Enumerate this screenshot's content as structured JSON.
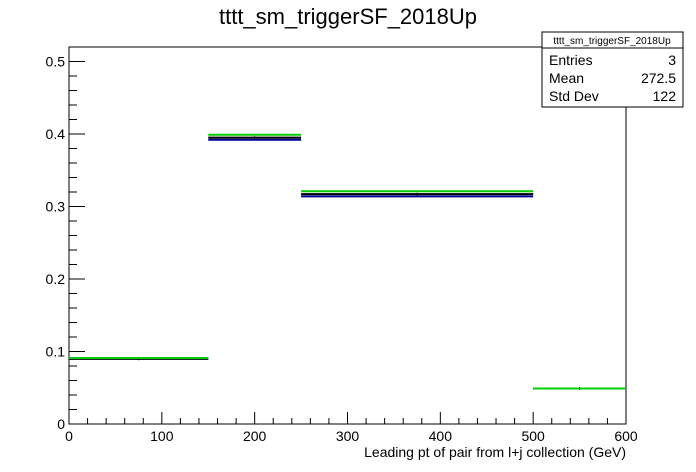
{
  "chart_data": {
    "type": "bar",
    "title": "tttt_sm_triggerSF_2018Up",
    "xlabel": "Leading pt of pair from l+j collection (GeV)",
    "ylabel": "",
    "xlim": [
      0,
      600
    ],
    "ylim": [
      0,
      0.52
    ],
    "x_ticks": [
      0,
      100,
      200,
      300,
      400,
      500,
      600
    ],
    "y_ticks": [
      0,
      0.1,
      0.2,
      0.3,
      0.4,
      0.5
    ],
    "x_tick_labels": [
      "0",
      "100",
      "200",
      "300",
      "400",
      "500",
      "600"
    ],
    "y_tick_labels": [
      "0",
      "0.1",
      "0.2",
      "0.3",
      "0.4",
      "0.5"
    ],
    "bin_edges": [
      0,
      150,
      250,
      500,
      600
    ],
    "series": [
      {
        "values": [
          0.09,
          0.392,
          0.314,
          0.049
        ],
        "color": "#000099"
      },
      {
        "values": [
          0.09,
          0.395,
          0.317,
          0.049
        ],
        "color": "#000000"
      },
      {
        "values": [
          0.091,
          0.399,
          0.321,
          0.049
        ],
        "color": "#00cc00"
      }
    ],
    "stats_box": {
      "title": "tttt_sm_triggerSF_2018Up",
      "rows": [
        {
          "label": "Entries",
          "value": "3"
        },
        {
          "label": "Mean",
          "value": "272.5"
        },
        {
          "label": "Std Dev",
          "value": "122"
        }
      ]
    }
  }
}
